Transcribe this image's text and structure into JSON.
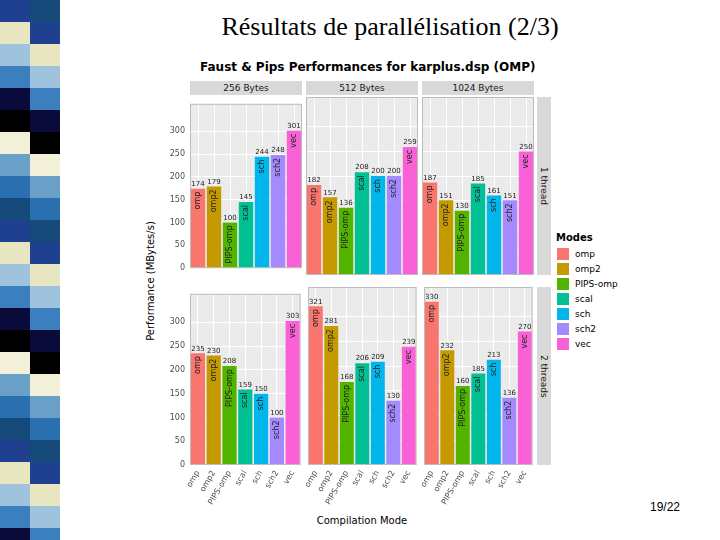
{
  "slide": {
    "title": "Résultats de parallélisation (2/3)",
    "page": "19/22"
  },
  "chart_data": {
    "type": "bar",
    "title": "Faust & Pips Performances for karplus.dsp (OMP)",
    "x_label": "Compilation Mode",
    "y_label": "Performance (MBytes/s)",
    "legend_title": "Modes",
    "legend": "right",
    "categories": [
      "omp",
      "omp2",
      "PIPS-omp",
      "scal",
      "sch",
      "sch2",
      "vec"
    ],
    "colors": [
      "#F8766D",
      "#C49A00",
      "#53B400",
      "#00C094",
      "#00B6EB",
      "#A58AFF",
      "#FB61D7"
    ],
    "column_labels": [
      "256 Bytes",
      "512 Bytes",
      "1024 Bytes"
    ],
    "row_labels": [
      "1 thread",
      "2 threads"
    ],
    "panels": [
      [
        [
          174,
          179,
          100,
          145,
          244,
          248,
          301
        ],
        [
          182,
          157,
          136,
          208,
          200,
          200,
          259
        ],
        [
          187,
          151,
          130,
          185,
          161,
          151,
          250
        ]
      ],
      [
        [
          235,
          230,
          208,
          159,
          150,
          100,
          303
        ],
        [
          321,
          281,
          168,
          206,
          209,
          130,
          239
        ],
        [
          330,
          232,
          160,
          185,
          213,
          136,
          270
        ]
      ]
    ],
    "ylim": [
      0,
      360
    ],
    "yticks": [
      0,
      50,
      100,
      150,
      200,
      250,
      300
    ],
    "grid": true,
    "data_labels": true
  }
}
